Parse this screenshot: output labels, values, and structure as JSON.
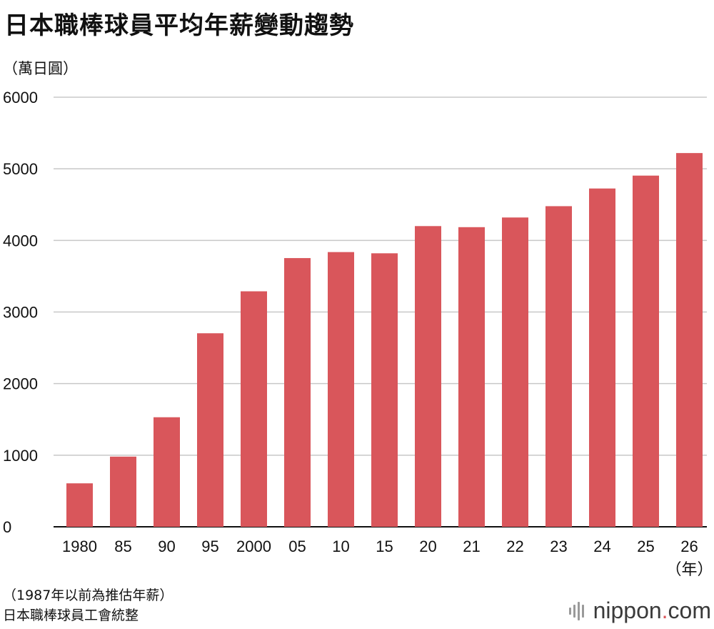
{
  "header": {
    "title": "日本職棒球員平均年薪變動趨勢",
    "unit": "（萬日圓）"
  },
  "footer": {
    "note": "（1987年以前為推估年薪）",
    "source": "日本職棒球員工會統整",
    "brand_name": "nippon",
    "brand_dot": ".",
    "brand_tld": "com"
  },
  "colors": {
    "bar": "#d9565b",
    "grid": "#c8c8c8",
    "axis": "#111111"
  },
  "chart_data": {
    "type": "bar",
    "categories": [
      "1980",
      "85",
      "90",
      "95",
      "2000",
      "05",
      "10",
      "15",
      "20",
      "21",
      "22",
      "23",
      "24",
      "25",
      "26"
    ],
    "values": [
      607,
      980,
      1530,
      2703,
      3289,
      3753,
      3837,
      3820,
      4200,
      4185,
      4320,
      4478,
      4725,
      4905,
      5220
    ],
    "ylabel": "（萬日圓）",
    "xlabel": "（年）",
    "ylim": [
      0,
      6000
    ],
    "yticks": [
      "0",
      "1000",
      "2000",
      "3000",
      "4000",
      "5000",
      "6000"
    ],
    "grid": true
  }
}
